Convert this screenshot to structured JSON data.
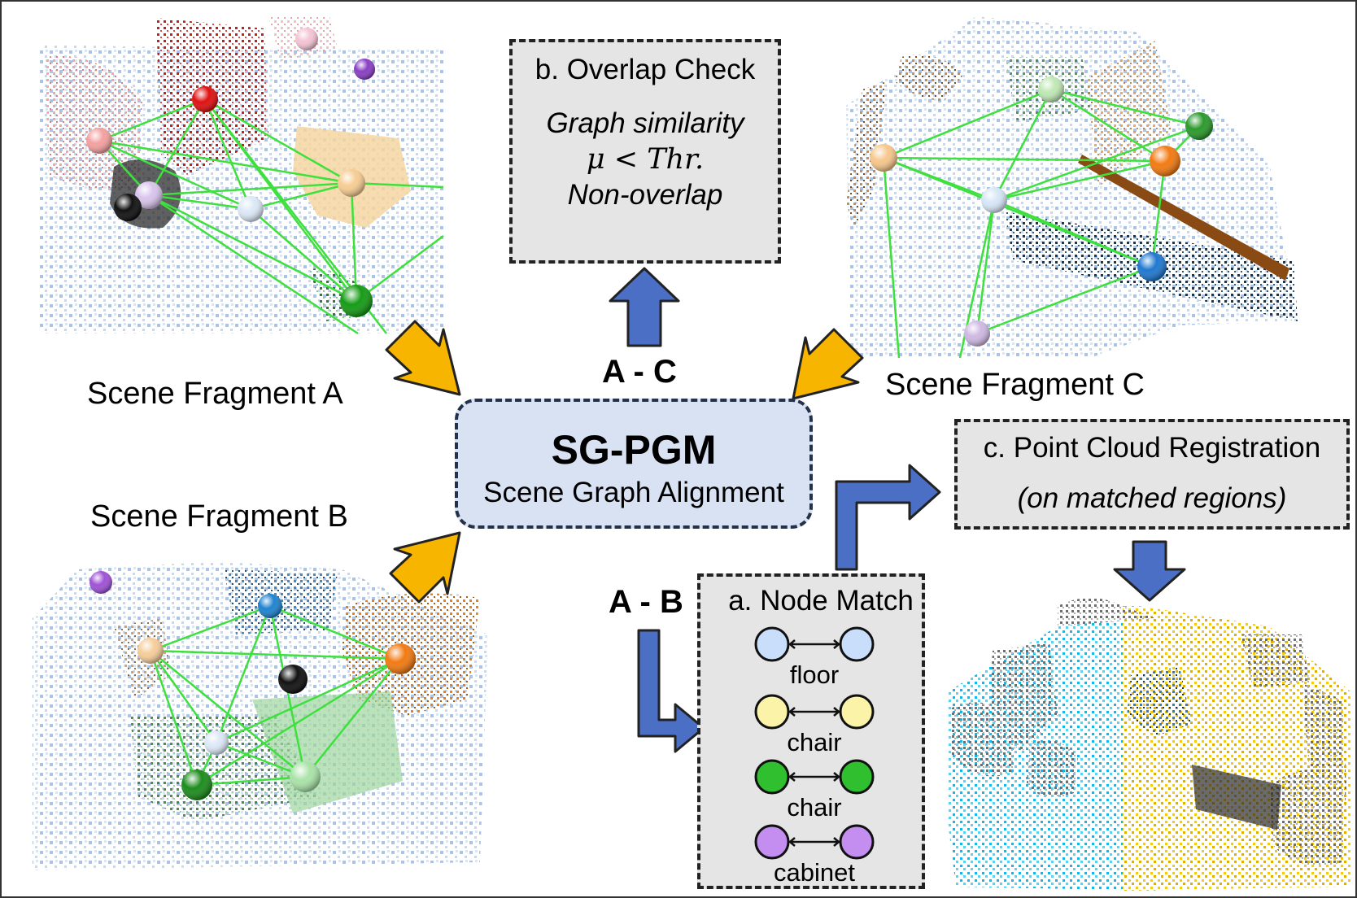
{
  "fragments": {
    "a": "Scene Fragment A",
    "b": "Scene Fragment B",
    "c": "Scene Fragment C"
  },
  "center": {
    "title": "SG-PGM",
    "subtitle": "Scene Graph Alignment"
  },
  "overlap_check": {
    "title": "b. Overlap Check",
    "line1": "Graph similarity",
    "line2": "μ < Thr.",
    "line3": "Non-overlap"
  },
  "registration": {
    "title": "c. Point Cloud Registration",
    "subtitle": "(on matched regions)"
  },
  "node_match": {
    "title": "a. Node Match",
    "pairs": [
      {
        "label": "floor",
        "color": "#c9defa"
      },
      {
        "label": "chair",
        "color": "#fbf3a8"
      },
      {
        "label": "chair",
        "color": "#2fbf2f"
      },
      {
        "label": "cabinet",
        "color": "#c48ef0"
      }
    ]
  },
  "arrow_labels": {
    "ac": "A - C",
    "ab": "A - B"
  },
  "colors": {
    "yellow_arrow": "#f7b500",
    "blue_arrow": "#4a6fc4",
    "edge_green": "#3de03d"
  }
}
